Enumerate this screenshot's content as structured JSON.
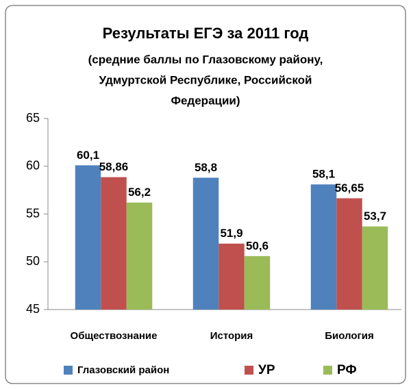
{
  "chart_data": {
    "type": "bar",
    "title": "Результаты ЕГЭ за 2011 год",
    "subtitle": [
      "(средние баллы по Глазовскому району,",
      "Удмуртской Республике, Российской",
      "Федерации)"
    ],
    "categories": [
      "Обществознание",
      "История",
      "Биология"
    ],
    "series": [
      {
        "name": "Глазовский район",
        "color": "#4f81bd",
        "values": [
          60.1,
          58.8,
          58.1
        ],
        "value_labels": [
          "60,1",
          "58,8",
          "58,1"
        ]
      },
      {
        "name": "УР",
        "color": "#c0504d",
        "values": [
          58.86,
          51.9,
          56.65
        ],
        "value_labels": [
          "58,86",
          "51,9",
          "56,65"
        ]
      },
      {
        "name": "РФ",
        "color": "#9bbb59",
        "values": [
          56.2,
          50.6,
          53.7
        ],
        "value_labels": [
          "56,2",
          "50,6",
          "53,7"
        ]
      }
    ],
    "ylim": [
      45,
      65
    ],
    "yticks": [
      45,
      50,
      55,
      60,
      65
    ],
    "grid": false,
    "legend": "bottom"
  }
}
